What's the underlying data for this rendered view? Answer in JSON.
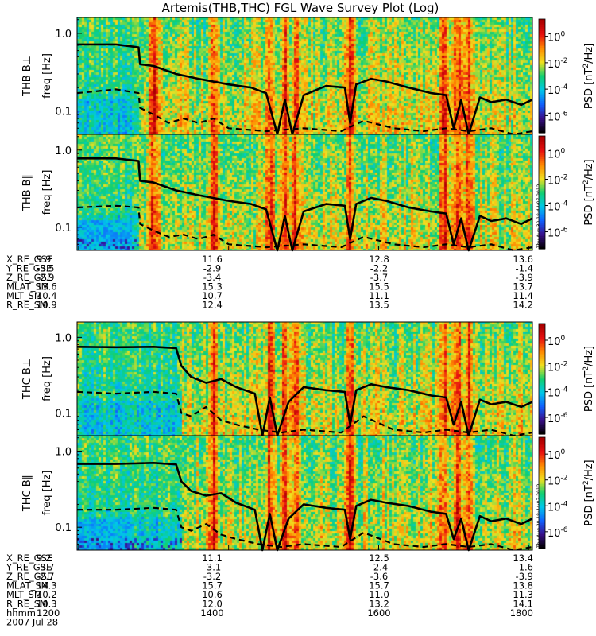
{
  "title": "Artemis(THB,THC) FGL Wave Survey Plot (Log)",
  "timestamp_text": "Thu Aug 30 18:44:07 2012",
  "chart_data": {
    "type": "heatmap",
    "colorbar": {
      "label_parts": [
        "PSD [nT",
        "2",
        "/Hz]"
      ],
      "ticks": [
        {
          "base": "10",
          "exp": "0",
          "value": 1
        },
        {
          "base": "10",
          "exp": "-2",
          "value": 0.01
        },
        {
          "base": "10",
          "exp": "-4",
          "value": 0.0001
        },
        {
          "base": "10",
          "exp": "-6",
          "value": 1e-06
        }
      ],
      "colors": [
        "#000000",
        "#3a0f8a",
        "#1060ff",
        "#00c8e8",
        "#10d070",
        "#f0e020",
        "#ff8a00",
        "#e81010",
        "#a80000"
      ]
    },
    "ylabel": "freq [Hz]",
    "ylim": [
      0.05,
      1.6
    ],
    "yscale": "log",
    "yticks": [
      "1.0",
      "0.1"
    ],
    "ytick_values": [
      1.0,
      0.1
    ],
    "x_hours_range": [
      11.98,
      18.05
    ],
    "panels": [
      {
        "name": "THB B⊥",
        "series": [
          {
            "name": "",
            "style": "solid",
            "x": [
              11.98,
              12.5,
              12.8,
              12.82,
              13.0,
              13.3,
              13.6,
              14.0,
              14.3,
              14.5,
              14.65,
              14.75,
              14.85,
              15.0,
              15.3,
              15.55,
              15.62,
              15.7,
              15.9,
              16.1,
              16.4,
              16.7,
              16.9,
              17.0,
              17.1,
              17.2,
              17.35,
              17.5,
              17.7,
              17.9,
              18.05
            ],
            "y": [
              0.72,
              0.72,
              0.66,
              0.4,
              0.38,
              0.3,
              0.26,
              0.22,
              0.2,
              0.17,
              0.05,
              0.14,
              0.05,
              0.16,
              0.21,
              0.2,
              0.07,
              0.22,
              0.26,
              0.24,
              0.2,
              0.17,
              0.16,
              0.06,
              0.14,
              0.05,
              0.15,
              0.13,
              0.14,
              0.12,
              0.14
            ]
          },
          {
            "name": "",
            "style": "dashed",
            "x": [
              11.98,
              12.5,
              12.8,
              12.82,
              13.0,
              13.2,
              13.4,
              13.6,
              13.8,
              14.0,
              14.5,
              15.0,
              15.5,
              15.8,
              16.2,
              16.6,
              16.9,
              17.2,
              17.5,
              17.8,
              18.05
            ],
            "y": [
              0.17,
              0.19,
              0.17,
              0.11,
              0.09,
              0.07,
              0.08,
              0.07,
              0.08,
              0.06,
              0.055,
              0.06,
              0.055,
              0.075,
              0.06,
              0.055,
              0.06,
              0.055,
              0.06,
              0.05,
              0.055
            ]
          }
        ]
      },
      {
        "name": "THB B∥",
        "series": [
          {
            "name": "",
            "style": "solid",
            "x": [
              11.98,
              12.5,
              12.8,
              12.82,
              13.0,
              13.3,
              13.6,
              14.0,
              14.3,
              14.5,
              14.65,
              14.75,
              14.85,
              15.0,
              15.3,
              15.55,
              15.62,
              15.7,
              15.9,
              16.1,
              16.4,
              16.7,
              16.9,
              17.0,
              17.1,
              17.2,
              17.35,
              17.5,
              17.7,
              17.9,
              18.05
            ],
            "y": [
              0.78,
              0.78,
              0.72,
              0.4,
              0.38,
              0.3,
              0.26,
              0.22,
              0.2,
              0.17,
              0.05,
              0.14,
              0.05,
              0.16,
              0.2,
              0.19,
              0.07,
              0.2,
              0.24,
              0.22,
              0.18,
              0.16,
              0.15,
              0.06,
              0.13,
              0.05,
              0.14,
              0.12,
              0.13,
              0.11,
              0.13
            ]
          },
          {
            "name": "",
            "style": "dashed",
            "x": [
              11.98,
              12.5,
              12.8,
              12.82,
              13.0,
              13.2,
              13.4,
              13.6,
              13.8,
              14.0,
              14.5,
              15.0,
              15.5,
              15.8,
              16.2,
              16.6,
              16.9,
              17.2,
              17.5,
              17.8,
              18.05
            ],
            "y": [
              0.18,
              0.19,
              0.18,
              0.11,
              0.09,
              0.075,
              0.08,
              0.07,
              0.08,
              0.06,
              0.055,
              0.06,
              0.055,
              0.075,
              0.06,
              0.055,
              0.06,
              0.055,
              0.06,
              0.05,
              0.055
            ]
          }
        ]
      },
      {
        "name": "THC B⊥",
        "series": [
          {
            "name": "",
            "style": "solid",
            "x": [
              11.98,
              12.5,
              13.0,
              13.3,
              13.37,
              13.5,
              13.7,
              13.9,
              14.1,
              14.35,
              14.45,
              14.55,
              14.65,
              14.8,
              15.0,
              15.3,
              15.55,
              15.62,
              15.7,
              15.9,
              16.1,
              16.4,
              16.7,
              16.9,
              17.0,
              17.1,
              17.2,
              17.35,
              17.5,
              17.7,
              17.9,
              18.05
            ],
            "y": [
              0.75,
              0.74,
              0.75,
              0.72,
              0.42,
              0.3,
              0.25,
              0.28,
              0.22,
              0.18,
              0.05,
              0.16,
              0.05,
              0.14,
              0.22,
              0.2,
              0.19,
              0.07,
              0.2,
              0.24,
              0.22,
              0.2,
              0.17,
              0.16,
              0.07,
              0.14,
              0.05,
              0.15,
              0.13,
              0.14,
              0.12,
              0.14
            ]
          },
          {
            "name": "",
            "style": "dashed",
            "x": [
              11.98,
              12.5,
              13.0,
              13.3,
              13.37,
              13.5,
              13.7,
              13.9,
              14.1,
              14.4,
              14.7,
              15.0,
              15.5,
              15.8,
              16.2,
              16.6,
              16.9,
              17.2,
              17.5,
              17.8,
              18.05
            ],
            "y": [
              0.19,
              0.18,
              0.19,
              0.18,
              0.1,
              0.09,
              0.12,
              0.08,
              0.07,
              0.06,
              0.055,
              0.06,
              0.055,
              0.09,
              0.06,
              0.055,
              0.06,
              0.055,
              0.06,
              0.05,
              0.055
            ]
          }
        ]
      },
      {
        "name": "THC B∥",
        "series": [
          {
            "name": "",
            "style": "solid",
            "x": [
              11.98,
              12.5,
              13.0,
              13.3,
              13.37,
              13.5,
              13.7,
              13.9,
              14.1,
              14.35,
              14.45,
              14.55,
              14.65,
              14.8,
              15.0,
              15.3,
              15.55,
              15.62,
              15.7,
              15.9,
              16.1,
              16.4,
              16.7,
              16.9,
              17.0,
              17.1,
              17.2,
              17.35,
              17.5,
              17.7,
              17.9,
              18.05
            ],
            "y": [
              0.68,
              0.68,
              0.7,
              0.67,
              0.4,
              0.3,
              0.26,
              0.28,
              0.21,
              0.17,
              0.05,
              0.15,
              0.05,
              0.13,
              0.2,
              0.18,
              0.17,
              0.07,
              0.19,
              0.23,
              0.21,
              0.19,
              0.16,
              0.15,
              0.07,
              0.13,
              0.05,
              0.14,
              0.12,
              0.13,
              0.11,
              0.13
            ]
          },
          {
            "name": "",
            "style": "dashed",
            "x": [
              11.98,
              12.5,
              13.0,
              13.3,
              13.37,
              13.5,
              13.7,
              13.9,
              14.1,
              14.4,
              14.7,
              15.0,
              15.5,
              15.8,
              16.2,
              16.6,
              16.9,
              17.2,
              17.5,
              17.8,
              18.05
            ],
            "y": [
              0.17,
              0.17,
              0.18,
              0.17,
              0.1,
              0.09,
              0.11,
              0.08,
              0.07,
              0.06,
              0.055,
              0.06,
              0.055,
              0.085,
              0.06,
              0.055,
              0.06,
              0.055,
              0.06,
              0.05,
              0.055
            ]
          }
        ]
      }
    ],
    "ephemeris_blocks": [
      {
        "rows": [
          {
            "label": "X_RE_GSE",
            "values": [
              "9.9",
              "11.6",
              "12.8",
              "13.6"
            ]
          },
          {
            "label": "Y_RE_GSE",
            "values": [
              "-3.5",
              "-2.9",
              "-2.2",
              "-1.4"
            ]
          },
          {
            "label": "Z_RE_GSE",
            "values": [
              "-2.9",
              "-3.4",
              "-3.7",
              "-3.9"
            ]
          },
          {
            "label": "MLAT_SM",
            "values": [
              "13.6",
              "15.3",
              "15.5",
              "13.7"
            ]
          },
          {
            "label": "MLT_SM",
            "values": [
              "10.4",
              "10.7",
              "11.1",
              "11.4"
            ]
          },
          {
            "label": "R_RE_SM",
            "values": [
              "10.9",
              "12.4",
              "13.5",
              "14.2"
            ]
          }
        ]
      },
      {
        "rows": [
          {
            "label": "X_RE_GSE",
            "values": [
              "9.2",
              "11.1",
              "12.5",
              "13.4"
            ]
          },
          {
            "label": "Y_RE_GSE",
            "values": [
              "-3.7",
              "-3.1",
              "-2.4",
              "-1.6"
            ]
          },
          {
            "label": "Z_RE_GSE",
            "values": [
              "-2.7",
              "-3.2",
              "-3.6",
              "-3.9"
            ]
          },
          {
            "label": "MLAT_SM",
            "values": [
              "14.3",
              "15.7",
              "15.7",
              "13.8"
            ]
          },
          {
            "label": "MLT_SM",
            "values": [
              "10.2",
              "10.6",
              "11.0",
              "11.3"
            ]
          },
          {
            "label": "R_RE_SM",
            "values": [
              "10.3",
              "12.0",
              "13.2",
              "14.1"
            ]
          },
          {
            "label": "hhmm",
            "values": [
              "1200",
              "1400",
              "1600",
              "1800"
            ]
          }
        ]
      }
    ],
    "x_tick_hours": [
      12,
      14,
      16,
      18
    ],
    "date_label": "2007 Jul 28"
  }
}
